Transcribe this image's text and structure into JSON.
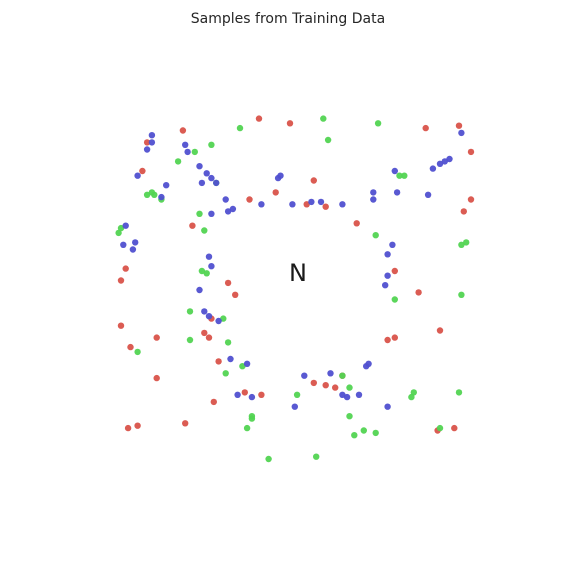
{
  "chart_data": {
    "type": "scatter",
    "title": "Samples from Training Data",
    "xlabel": "",
    "ylabel": "",
    "xlim": [
      -1.05,
      1.05
    ],
    "ylim": [
      -1.05,
      1.05
    ],
    "axes_visible": false,
    "grid": false,
    "center_annotation": "N",
    "colors": {
      "red": "#d9534a",
      "green": "#52d452",
      "blue": "#5050d0"
    },
    "series": [
      {
        "color": "red",
        "x": [
          -0.45,
          -0.17,
          -0.06,
          0.07,
          0.15,
          0.44,
          0.44,
          0.41,
          0.19,
          0.22,
          0.15,
          -0.12,
          -0.36,
          -0.33,
          -0.34,
          -0.3,
          -0.23,
          -0.13,
          0.0,
          -0.6,
          -0.62,
          -0.68,
          -0.64,
          -0.56,
          -0.41,
          -0.26,
          0.1,
          0.54,
          0.63,
          0.73,
          0.76,
          0.76,
          0.71,
          0.69,
          0.62,
          0.57,
          0.28,
          0.1,
          -0.19,
          -0.32,
          -0.44,
          -0.56,
          -0.71,
          -0.69,
          -0.71,
          -0.67
        ],
        "y": [
          0.67,
          0.38,
          0.41,
          0.36,
          0.35,
          0.08,
          -0.2,
          -0.21,
          -0.41,
          -0.36,
          -0.4,
          -0.44,
          -0.18,
          -0.12,
          -0.2,
          -0.3,
          -0.02,
          0.72,
          0.7,
          0.62,
          0.5,
          -0.58,
          -0.57,
          -0.2,
          0.27,
          0.03,
          0.46,
          -0.01,
          -0.17,
          0.33,
          0.38,
          0.58,
          0.69,
          -0.58,
          -0.59,
          0.68,
          0.28,
          -0.39,
          -0.43,
          -0.47,
          -0.56,
          -0.37,
          0.04,
          0.09,
          -0.15,
          -0.24
        ]
      },
      {
        "color": "green",
        "x": [
          -0.21,
          -0.47,
          -0.4,
          -0.33,
          -0.57,
          -0.58,
          -0.38,
          -0.36,
          -0.64,
          -0.27,
          -0.2,
          0.03,
          0.31,
          0.27,
          0.36,
          0.25,
          0.22,
          0.36,
          0.48,
          0.46,
          0.44,
          0.72,
          0.72,
          0.74,
          0.71,
          0.63,
          0.52,
          0.51,
          0.25,
          0.11,
          -0.09,
          -0.18,
          -0.16,
          -0.16,
          -0.31,
          -0.35,
          -0.37,
          -0.54,
          -0.6,
          -0.72,
          -0.71,
          0.14,
          0.37,
          0.16,
          -0.26,
          -0.28,
          -0.42,
          -0.42
        ],
        "y": [
          0.68,
          0.54,
          0.58,
          0.61,
          0.4,
          0.41,
          0.32,
          0.25,
          -0.26,
          -0.35,
          -0.32,
          -0.44,
          -0.59,
          -0.61,
          -0.6,
          -0.41,
          -0.36,
          0.23,
          0.48,
          0.48,
          -0.04,
          -0.02,
          0.19,
          0.2,
          -0.43,
          -0.58,
          -0.43,
          -0.45,
          -0.53,
          -0.7,
          -0.71,
          -0.58,
          -0.53,
          -0.54,
          0.45,
          0.07,
          0.08,
          0.38,
          0.4,
          0.24,
          0.26,
          0.72,
          0.7,
          0.63,
          -0.22,
          -0.12,
          -0.09,
          -0.21
        ]
      },
      {
        "color": "blue",
        "x": [
          -0.31,
          -0.24,
          -0.26,
          -0.33,
          -0.34,
          -0.33,
          -0.38,
          -0.36,
          -0.34,
          -0.3,
          -0.25,
          -0.18,
          0.06,
          0.17,
          0.13,
          0.32,
          0.33,
          0.41,
          0.4,
          0.45,
          -0.16,
          -0.22,
          0.02,
          0.22,
          0.24,
          0.29,
          0.41,
          0.41,
          0.43,
          0.58,
          0.72,
          0.67,
          0.65,
          0.63,
          0.6,
          0.44,
          0.35,
          0.35,
          0.22,
          0.09,
          0.01,
          -0.12,
          -0.27,
          -0.33,
          -0.35,
          -0.38,
          -0.58,
          -0.6,
          -0.58,
          -0.64,
          -0.69,
          -0.7,
          -0.65,
          -0.66,
          -0.54,
          -0.52,
          -0.44,
          -0.43,
          -0.05,
          -0.04,
          -0.37
        ],
        "y": [
          0.45,
          0.34,
          0.33,
          0.32,
          0.14,
          0.1,
          0.0,
          -0.09,
          -0.11,
          -0.13,
          -0.29,
          -0.31,
          -0.36,
          -0.35,
          0.37,
          -0.32,
          -0.31,
          0.06,
          0.02,
          0.41,
          -0.45,
          -0.44,
          -0.49,
          -0.44,
          -0.45,
          -0.44,
          -0.49,
          0.15,
          0.19,
          0.4,
          0.66,
          0.55,
          0.54,
          0.53,
          0.51,
          0.5,
          0.38,
          0.41,
          0.36,
          0.37,
          0.36,
          0.36,
          0.38,
          0.47,
          0.49,
          0.52,
          0.65,
          0.59,
          0.62,
          0.48,
          0.27,
          0.19,
          0.2,
          0.17,
          0.39,
          0.44,
          0.61,
          0.58,
          0.47,
          0.48,
          0.45
        ]
      }
    ]
  }
}
